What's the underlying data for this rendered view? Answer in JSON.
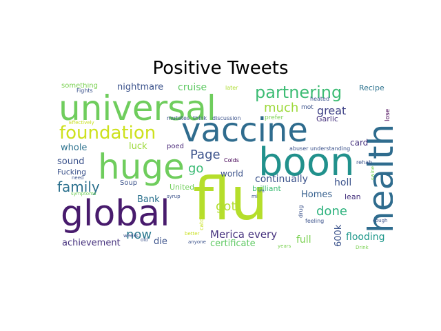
{
  "title": "Positive Tweets",
  "words": [
    {
      "text": "universal",
      "color": "#6fcd5d"
    },
    {
      "text": "vaccine",
      "color": "#2f6c8e"
    },
    {
      "text": "health",
      "color": "#2f6c8e"
    },
    {
      "text": "huge",
      "color": "#6fcd5d"
    },
    {
      "text": "boon",
      "color": "#21918c"
    },
    {
      "text": "flu",
      "color": "#b5de2b"
    },
    {
      "text": "global",
      "color": "#481b6d"
    },
    {
      "text": "foundation",
      "color": "#cde11d"
    },
    {
      "text": "partnering",
      "color": "#3dbc74"
    },
    {
      "text": "family",
      "color": "#2c718e"
    },
    {
      "text": "Page",
      "color": "#3b528b"
    },
    {
      "text": "much",
      "color": "#9dd93b"
    },
    {
      "text": "go",
      "color": "#3bbb75"
    },
    {
      "text": "got",
      "color": "#b0dd2f"
    },
    {
      "text": "done",
      "color": "#2db27d"
    },
    {
      "text": "great",
      "color": "#404387"
    },
    {
      "text": "now",
      "color": "#2a788e"
    },
    {
      "text": "Merica every",
      "color": "#46327e"
    },
    {
      "text": "continually",
      "color": "#3b528b"
    },
    {
      "text": "nightmare",
      "color": "#3b528b"
    },
    {
      "text": "cruise",
      "color": "#5ec962"
    },
    {
      "text": "luck",
      "color": "#9dd93b"
    },
    {
      "text": "whole",
      "color": "#2c728e"
    },
    {
      "text": "sound",
      "color": "#3b528b"
    },
    {
      "text": "Bank",
      "color": "#2c728e"
    },
    {
      "text": "achievement",
      "color": "#46327e"
    },
    {
      "text": "die",
      "color": "#3b528b"
    },
    {
      "text": "certificate",
      "color": "#5ec962"
    },
    {
      "text": "full",
      "color": "#7ad151"
    },
    {
      "text": "holl",
      "color": "#3b528b"
    },
    {
      "text": "Homes",
      "color": "#355f8d"
    },
    {
      "text": "flooding",
      "color": "#1f988b"
    },
    {
      "text": "600k",
      "color": "#3b528b"
    },
    {
      "text": "world",
      "color": "#3b528b"
    },
    {
      "text": "brilliant",
      "color": "#3dbc74"
    },
    {
      "text": "card",
      "color": "#46327e"
    },
    {
      "text": "Garlic",
      "color": "#46327e"
    },
    {
      "text": "lean",
      "color": "#46327e"
    },
    {
      "text": "Recipe",
      "color": "#2c728e"
    },
    {
      "text": "Fucking",
      "color": "#3b528b"
    },
    {
      "text": "Soup",
      "color": "#3b528b"
    },
    {
      "text": "United",
      "color": "#6ece58"
    },
    {
      "text": "poed",
      "color": "#482878"
    },
    {
      "text": "something",
      "color": "#7ad151"
    },
    {
      "text": "Fights",
      "color": "#3b528b"
    },
    {
      "text": "later",
      "color": "#addc30"
    },
    {
      "text": "heated",
      "color": "#3b528b"
    },
    {
      "text": "mot",
      "color": "#3b528b"
    },
    {
      "text": "prefer",
      "color": "#7ad151"
    },
    {
      "text": "lose",
      "color": "#440154"
    },
    {
      "text": "mutates",
      "color": "#3b528b"
    },
    {
      "text": "think",
      "color": "#3b528b"
    },
    {
      "text": "discussion",
      "color": "#3b528b"
    },
    {
      "text": "Effectively",
      "color": "#c8e020"
    },
    {
      "text": "abuser",
      "color": "#3b528b"
    },
    {
      "text": "understanding",
      "color": "#3b528b"
    },
    {
      "text": "Colds",
      "color": "#440154"
    },
    {
      "text": "need",
      "color": "#3b528b"
    },
    {
      "text": "rehab",
      "color": "#3b528b"
    },
    {
      "text": "swine",
      "color": "#7ad151"
    },
    {
      "text": "symptoms",
      "color": "#6ece58"
    },
    {
      "text": "syrup",
      "color": "#3b528b"
    },
    {
      "text": "im",
      "color": "#3b528b"
    },
    {
      "text": "mi",
      "color": "#3b528b"
    },
    {
      "text": "drug",
      "color": "#3b528b"
    },
    {
      "text": "feeling",
      "color": "#3b528b"
    },
    {
      "text": "cough",
      "color": "#3b528b"
    },
    {
      "text": "weeks",
      "color": "#3b528b"
    },
    {
      "text": "old",
      "color": "#3b528b"
    },
    {
      "text": "better",
      "color": "#c8e020"
    },
    {
      "text": "anyone",
      "color": "#3b528b"
    },
    {
      "text": "years",
      "color": "#7ad151"
    },
    {
      "text": "Drink",
      "color": "#7ad151"
    },
    {
      "text": "catch",
      "color": "#c8e020"
    }
  ]
}
